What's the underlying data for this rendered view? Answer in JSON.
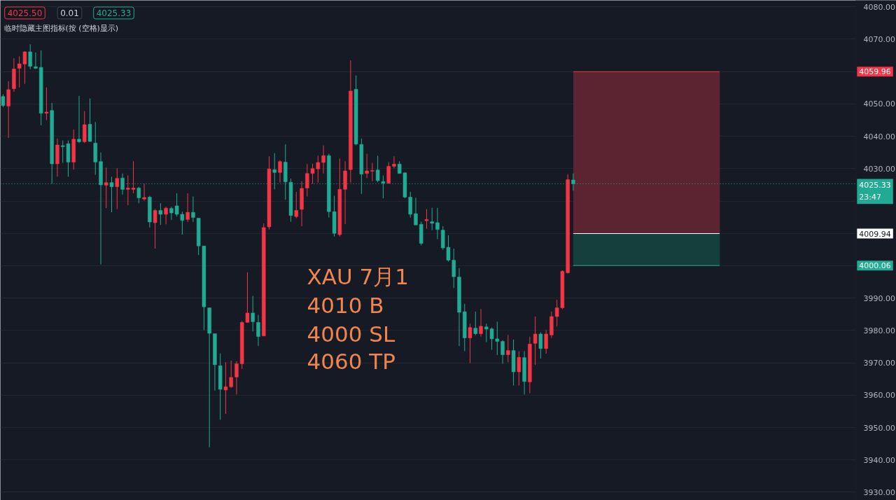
{
  "chart_data": {
    "type": "candlestick",
    "categories": [
      null,
      null,
      null,
      null,
      null,
      null,
      null,
      null,
      null,
      null,
      null,
      null,
      null,
      null,
      null,
      null,
      null,
      null,
      null,
      null,
      null,
      null,
      null,
      null,
      null,
      null,
      null,
      null,
      null,
      null,
      null,
      null,
      null,
      null,
      null,
      null,
      null,
      null,
      null,
      null,
      null,
      null,
      null,
      null,
      null,
      null,
      null,
      null,
      null,
      null,
      null,
      null,
      null,
      null,
      null,
      null,
      null,
      null,
      null,
      null,
      null,
      null,
      null,
      null,
      null,
      null,
      null,
      null,
      null,
      null,
      null,
      null,
      null,
      null,
      null,
      null,
      null,
      null,
      null,
      null,
      null,
      null,
      null,
      null,
      null,
      null,
      null,
      null,
      null,
      null,
      null,
      null,
      null,
      null,
      null,
      null,
      null,
      null,
      null,
      null,
      null,
      null,
      null,
      null,
      null,
      null,
      null,
      null,
      null,
      null,
      null,
      null,
      null,
      null,
      null,
      null,
      null,
      null,
      null,
      null,
      null,
      null,
      null,
      null,
      null,
      null,
      null,
      null,
      null,
      null,
      null,
      null,
      null,
      null,
      null,
      null,
      null,
      null,
      null,
      null,
      null,
      null,
      null,
      null,
      null,
      null,
      null,
      null,
      null,
      null,
      null,
      null,
      null,
      null,
      null,
      null,
      null,
      null,
      null,
      null,
      null,
      null,
      null,
      null,
      null
    ],
    "ohlc": [
      [
        4052.3,
        4053.0,
        4049.0,
        4049.5
      ],
      [
        4049.3,
        4057.0,
        4039.5,
        4054.4
      ],
      [
        4054.7,
        4064.1,
        4053.7,
        4060.8
      ],
      [
        4061.0,
        4064.7,
        4055.1,
        4062.4
      ],
      [
        4062.3,
        4066.3,
        4056.2,
        4066.1
      ],
      [
        4066.1,
        4068.4,
        4060.7,
        4061.6
      ],
      [
        4061.5,
        4065.9,
        4060.8,
        4061.0
      ],
      [
        4061.3,
        4066.5,
        4043.4,
        4047.1
      ],
      [
        4047.1,
        4055.1,
        4045.0,
        4047.5
      ],
      [
        4048.0,
        4050.3,
        4025.3,
        4031.5
      ],
      [
        4031.5,
        4039.3,
        4027.5,
        4037.3
      ],
      [
        4037.1,
        4038.7,
        4031.8,
        4036.8
      ],
      [
        4037.7,
        4038.7,
        4027.5,
        4032.0
      ],
      [
        4032.0,
        4042.1,
        4029.7,
        4039.1
      ],
      [
        4039.1,
        4052.5,
        4037.9,
        4038.3
      ],
      [
        4038.3,
        4047.8,
        4037.9,
        4043.6
      ],
      [
        4043.7,
        4051.7,
        4038.3,
        4038.4
      ],
      [
        4037.9,
        4044.4,
        4028.1,
        4032.0
      ],
      [
        4032.2,
        4035.0,
        4000.4,
        4025.0
      ],
      [
        4024.9,
        4030.3,
        4017.8,
        4025.7
      ],
      [
        4025.7,
        4027.5,
        4016.5,
        4024.4
      ],
      [
        4024.4,
        4030.1,
        4017.5,
        4027.0
      ],
      [
        4027.1,
        4028.5,
        4022.0,
        4023.6
      ],
      [
        4023.6,
        4027.9,
        4018.7,
        4024.0
      ],
      [
        4023.6,
        4032.3,
        4022.4,
        4024.0
      ],
      [
        4024.0,
        4024.4,
        4019.3,
        4021.0
      ],
      [
        4020.6,
        4025.3,
        4020.1,
        4021.1
      ],
      [
        4021.2,
        4021.6,
        4011.8,
        4013.5
      ],
      [
        4013.3,
        4017.5,
        4005.3,
        4017.1
      ],
      [
        4017.1,
        4019.3,
        4012.6,
        4015.9
      ],
      [
        4015.9,
        4018.2,
        4012.8,
        4017.8
      ],
      [
        4017.7,
        4018.2,
        4014.1,
        4016.3
      ],
      [
        4018.5,
        4022.4,
        4015.2,
        4015.9
      ],
      [
        4015.9,
        4016.7,
        4009.6,
        4014.0
      ],
      [
        4014.3,
        4022.4,
        4013.5,
        4016.5
      ],
      [
        4016.5,
        4021.4,
        4013.5,
        4014.9
      ],
      [
        4014.7,
        4014.7,
        4003.3,
        4006.1
      ],
      [
        4006.1,
        4006.1,
        3980.1,
        3987.3
      ],
      [
        3987.0,
        3987.0,
        3943.9,
        3979.1
      ],
      [
        3979.0,
        3979.0,
        3961.4,
        3969.4
      ],
      [
        3969.1,
        3972.9,
        3952.4,
        3961.8
      ],
      [
        3961.6,
        3970.2,
        3954.2,
        3962.6
      ],
      [
        3962.6,
        3970.7,
        3962.2,
        3965.5
      ],
      [
        3965.6,
        3970.5,
        3960.2,
        3969.7
      ],
      [
        3969.7,
        3982.9,
        3968.1,
        3982.5
      ],
      [
        3982.5,
        3998.0,
        3982.4,
        3985.4
      ],
      [
        3985.4,
        3990.7,
        3979.7,
        3982.7
      ],
      [
        3982.5,
        3984.8,
        3975.2,
        3978.1
      ],
      [
        3978.3,
        4013.1,
        3978.3,
        4011.8
      ],
      [
        4012.0,
        4033.8,
        4011.2,
        4029.9
      ],
      [
        4029.7,
        4034.8,
        4023.6,
        4028.8
      ],
      [
        4028.8,
        4032.6,
        4025.7,
        4032.2
      ],
      [
        4032.0,
        4037.5,
        4020.4,
        4025.9
      ],
      [
        4025.8,
        4026.9,
        4013.6,
        4015.5
      ],
      [
        4015.2,
        4022.8,
        4014.7,
        4017.1
      ],
      [
        4017.4,
        4026.1,
        4012.2,
        4023.9
      ],
      [
        4024.0,
        4031.4,
        4021.4,
        4028.5
      ],
      [
        4028.5,
        4031.5,
        4025.3,
        4030.0
      ],
      [
        4029.9,
        4034.0,
        4025.7,
        4031.9
      ],
      [
        4031.9,
        4037.2,
        4028.5,
        4034.0
      ],
      [
        4034.0,
        4034.6,
        4014.9,
        4016.7
      ],
      [
        4016.7,
        4021.6,
        4009.0,
        4010.0
      ],
      [
        4009.6,
        4033.1,
        4009.0,
        4023.6
      ],
      [
        4023.6,
        4032.3,
        4012.9,
        4029.3
      ],
      [
        4029.7,
        4063.5,
        4025.7,
        4054.0
      ],
      [
        4054.5,
        4058.8,
        4037.2,
        4037.6
      ],
      [
        4037.5,
        4039.3,
        4022.2,
        4028.3
      ],
      [
        4028.5,
        4034.6,
        4027.1,
        4029.3
      ],
      [
        4029.2,
        4031.8,
        4026.1,
        4029.4
      ],
      [
        4029.6,
        4034.0,
        4025.8,
        4026.3
      ],
      [
        4026.0,
        4027.9,
        4020.8,
        4025.5
      ],
      [
        4025.5,
        4032.0,
        4025.3,
        4030.7
      ],
      [
        4030.7,
        4033.8,
        4030.1,
        4031.4
      ],
      [
        4031.4,
        4032.3,
        4028.5,
        4028.5
      ],
      [
        4028.7,
        4028.9,
        4020.9,
        4021.2
      ],
      [
        4021.2,
        4022.8,
        4014.9,
        4015.9
      ],
      [
        4016.1,
        4021.0,
        4012.5,
        4012.6
      ],
      [
        4012.8,
        4013.6,
        4006.3,
        4006.9
      ],
      [
        4013.9,
        4017.5,
        4011.4,
        4014.3
      ],
      [
        4013.6,
        4017.9,
        4011.0,
        4013.1
      ],
      [
        4013.3,
        4017.9,
        4008.2,
        4011.2
      ],
      [
        4011.0,
        4012.2,
        4004.9,
        4005.5
      ],
      [
        4005.7,
        4009.4,
        4001.3,
        4001.7
      ],
      [
        4001.7,
        4005.3,
        3993.1,
        3996.6
      ],
      [
        3996.5,
        3999.2,
        3975.2,
        3985.6
      ],
      [
        3985.8,
        3988.2,
        3973.6,
        3977.7
      ],
      [
        3977.7,
        3982.1,
        3969.9,
        3980.9
      ],
      [
        3980.7,
        3985.8,
        3978.5,
        3979.0
      ],
      [
        3979.0,
        3986.6,
        3978.1,
        3981.3
      ],
      [
        3981.1,
        3982.1,
        3976.4,
        3980.4
      ],
      [
        3980.5,
        3980.9,
        3974.0,
        3977.4
      ],
      [
        3977.4,
        3982.7,
        3972.4,
        3976.6
      ],
      [
        3976.6,
        3977.0,
        3969.7,
        3972.5
      ],
      [
        3972.5,
        3978.6,
        3970.2,
        3973.8
      ],
      [
        3973.8,
        3977.2,
        3963.0,
        3967.2
      ],
      [
        3967.2,
        3973.6,
        3963.0,
        3971.7
      ],
      [
        3971.6,
        3973.6,
        3960.2,
        3964.2
      ],
      [
        3964.1,
        3978.1,
        3960.6,
        3975.8
      ],
      [
        3976.0,
        3984.3,
        3969.4,
        3978.9
      ],
      [
        3978.9,
        3979.4,
        3971.3,
        3974.4
      ],
      [
        3974.4,
        3980.1,
        3972.8,
        3978.9
      ],
      [
        3978.6,
        3985.8,
        3977.7,
        3984.3
      ],
      [
        3984.3,
        3989.5,
        3981.3,
        3987.0
      ],
      [
        3987.0,
        3998.6,
        3986.6,
        3998.3
      ],
      [
        3997.8,
        4028.3,
        3997.6,
        4026.6
      ],
      [
        4026.5,
        4028.5,
        4023.2,
        4025.33
      ],
      null,
      null,
      null,
      null,
      null,
      null,
      null,
      null,
      null,
      null,
      null,
      null,
      null,
      null,
      null,
      null,
      null,
      null,
      null,
      null,
      null,
      null,
      null,
      null,
      null,
      null,
      null,
      null,
      null,
      null,
      null,
      null,
      null,
      null,
      null,
      null,
      null,
      null,
      null,
      null,
      null,
      null,
      null,
      null,
      null,
      null,
      null,
      null,
      null,
      null,
      null,
      null,
      null,
      null,
      null,
      null,
      null,
      null,
      null
    ],
    "colors": [
      "#22ab94",
      "#f23645",
      "#f23645",
      "#f23645",
      "#f23645",
      "#22ab94",
      "#22ab94",
      "#22ab94",
      "#f23645",
      "#22ab94",
      "#f23645",
      "#22ab94",
      "#22ab94",
      "#f23645",
      "#22ab94",
      "#f23645",
      "#22ab94",
      "#22ab94",
      "#22ab94",
      "#f23645",
      "#22ab94",
      "#f23645",
      "#22ab94",
      "#f23645",
      "#f23645",
      "#22ab94",
      "#f23645",
      "#22ab94",
      "#f23645",
      "#22ab94",
      "#f23645",
      "#22ab94",
      "#22ab94",
      "#22ab94",
      "#f23645",
      "#22ab94",
      "#22ab94",
      "#22ab94",
      "#22ab94",
      "#22ab94",
      "#22ab94",
      "#f23645",
      "#f23645",
      "#f23645",
      "#f23645",
      "#f23645",
      "#22ab94",
      "#22ab94",
      "#f23645",
      "#f23645",
      "#22ab94",
      "#f23645",
      "#22ab94",
      "#22ab94",
      "#f23645",
      "#f23645",
      "#f23645",
      "#f23645",
      "#f23645",
      "#f23645",
      "#22ab94",
      "#22ab94",
      "#f23645",
      "#f23645",
      "#f23645",
      "#22ab94",
      "#22ab94",
      "#f23645",
      "#f23645",
      "#22ab94",
      "#22ab94",
      "#f23645",
      "#f23645",
      "#22ab94",
      "#22ab94",
      "#22ab94",
      "#22ab94",
      "#22ab94",
      "#f23645",
      "#22ab94",
      "#22ab94",
      "#22ab94",
      "#22ab94",
      "#22ab94",
      "#22ab94",
      "#22ab94",
      "#f23645",
      "#22ab94",
      "#f23645",
      "#22ab94",
      "#22ab94",
      "#22ab94",
      "#22ab94",
      "#f23645",
      "#22ab94",
      "#f23645",
      "#22ab94",
      "#f23645",
      "#f23645",
      "#22ab94",
      "#f23645",
      "#f23645",
      "#f23645",
      "#f23645",
      "#f23645",
      "#22ab94",
      null,
      null,
      null,
      null,
      null,
      null,
      null,
      null,
      null,
      null,
      null,
      null,
      null,
      null,
      null,
      null,
      null,
      null,
      null,
      null,
      null,
      null,
      null,
      null,
      null,
      null,
      null,
      null,
      null,
      null,
      null,
      null,
      null,
      null,
      null,
      null,
      null,
      null,
      null,
      null,
      null,
      null,
      null,
      null,
      null,
      null,
      null,
      null,
      null,
      null,
      null,
      null,
      null,
      null,
      null,
      null,
      null,
      null,
      null
    ],
    "ylim": [
      3927.5,
      4082
    ],
    "yticks": [
      {
        "value": 3930,
        "label": "3930.00"
      },
      {
        "value": 3940,
        "label": "3940.00"
      },
      {
        "value": 3950,
        "label": "3950.00"
      },
      {
        "value": 3960,
        "label": "3960.00"
      },
      {
        "value": 3970,
        "label": "3970.00"
      },
      {
        "value": 3980,
        "label": "3980.00"
      },
      {
        "value": 3990,
        "label": "3990.00"
      },
      {
        "value": 4000,
        "label": null
      },
      {
        "value": 4010,
        "label": null
      },
      {
        "value": 4020,
        "label": null
      },
      {
        "value": 4030,
        "label": "4030.00"
      },
      {
        "value": 4040,
        "label": "4040.00"
      },
      {
        "value": 4050,
        "label": "4050.00"
      },
      {
        "value": 4060,
        "label": null
      },
      {
        "value": 4070,
        "label": "4070.00"
      },
      {
        "value": 4080,
        "label": "4080.00"
      }
    ],
    "grid": "y",
    "tick_labels": "y",
    "bands": [
      {
        "axis": "y",
        "from": 4009.94,
        "to": 4059.96,
        "color": "#5c2430"
      },
      {
        "axis": "y",
        "from": 4000.06,
        "to": 4009.94,
        "color": "#143f3c"
      }
    ],
    "ref_lines": [
      {
        "axis": "y",
        "value": 4059.96,
        "label": "4059.96",
        "color": "#f23645"
      },
      {
        "axis": "y",
        "value": 4025.33,
        "label": "4025.33\n23:47",
        "color": "#22ab94",
        "line_style": "dotted"
      },
      {
        "axis": "y",
        "value": 4009.94,
        "label": "4009.94",
        "color": "#ffffff"
      },
      {
        "axis": "y",
        "value": 4000.06,
        "label": "4000.06",
        "color": "#22ab94"
      }
    ],
    "annotations": [
      "4025.50",
      "0.01",
      "4025.33",
      "临时隐藏主图指标(按 (空格)显示)",
      "XAU  7月1",
      "4010 B",
      "4000 SL",
      "4060 TP"
    ]
  }
}
